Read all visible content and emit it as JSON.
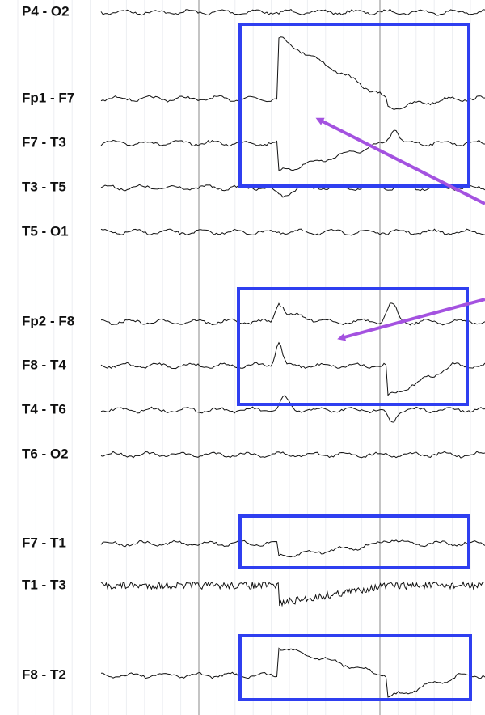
{
  "channels": [
    "P4 - O2",
    "Fp1 - F7",
    "F7 - T3",
    "T3 - T5",
    "T5 - O1",
    "Fp2 - F8",
    "F8 - T4",
    "T4 - T6",
    "T6 - O2",
    "F7 - T1",
    "T1 - T3",
    "F8 - T2"
  ]
}
